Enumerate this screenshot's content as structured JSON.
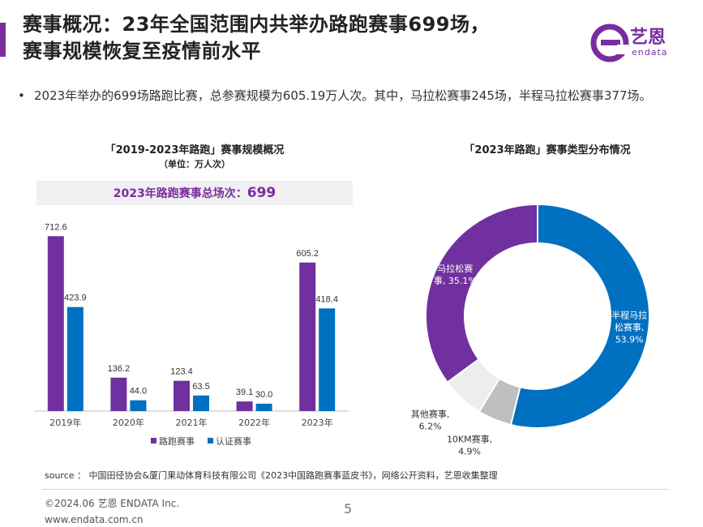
{
  "header": {
    "title_line1": "赛事概况：23年全国范围内共举办路跑赛事699场，",
    "title_line2": "赛事规模恢复至疫情前水平",
    "accent_color": "#7a2d9e"
  },
  "logo": {
    "name": "艺恩",
    "sub": "endata",
    "icon": "endata-e-logo"
  },
  "bullet": {
    "text": "2023年举办的699场路跑比赛，总参赛规模为605.19万人次。其中，马拉松赛事245场，半程马拉松赛事377场。"
  },
  "chart_data": [
    {
      "type": "bar",
      "title": "「2019-2023年路跑」赛事规模概况",
      "subtitle": "（单位：万人次）",
      "banner_label": "2023年路跑赛事总场次：",
      "banner_value": "699",
      "categories": [
        "2019年",
        "2020年",
        "2021年",
        "2022年",
        "2023年"
      ],
      "series": [
        {
          "name": "路跑赛事",
          "color": "#7030a0",
          "values": [
            712.6,
            136.2,
            123.4,
            39.1,
            605.2
          ],
          "labels": [
            "712.6",
            "136.2",
            "123.4",
            "39.1",
            "605.2"
          ]
        },
        {
          "name": "认证赛事",
          "color": "#0070c0",
          "values": [
            423.9,
            44.0,
            63.5,
            30.0,
            418.4
          ],
          "labels": [
            "423.9",
            "44.0",
            "63.5",
            "30.0",
            "418.4"
          ]
        }
      ],
      "ylim": [
        0,
        750
      ],
      "legend_position": "bottom",
      "grid": false
    },
    {
      "type": "pie",
      "donut": true,
      "title": "「2023年路跑」赛事类型分布情况",
      "slices": [
        {
          "name": "半程马拉松赛事",
          "value": 53.9,
          "label_lines": [
            "半程马拉",
            "松赛事,",
            "53.9%"
          ],
          "color": "#0070c0",
          "label_color": "#ffffff"
        },
        {
          "name": "10KM赛事",
          "value": 4.9,
          "label_lines": [
            "10KM赛事,",
            "4.9%"
          ],
          "color": "#bfbfbf",
          "label_color": "#333333"
        },
        {
          "name": "其他赛事",
          "value": 6.2,
          "label_lines": [
            "其他赛事,",
            "6.2%"
          ],
          "color": "#ededed",
          "label_color": "#333333"
        },
        {
          "name": "马拉松赛事",
          "value": 35.1,
          "label_lines": [
            "马拉松赛",
            "事, 35.1%"
          ],
          "color": "#7030a0",
          "label_color": "#ffffff"
        }
      ]
    }
  ],
  "footer": {
    "source": "source ： 中国田径协会&厦门果动体育科技有限公司《2023中国路跑赛事蓝皮书》，网络公开资料，艺恩收集整理",
    "copyright": "©2024.06  艺恩 ENDATA Inc.",
    "site": "www.endata.com.cn",
    "page": "5"
  }
}
